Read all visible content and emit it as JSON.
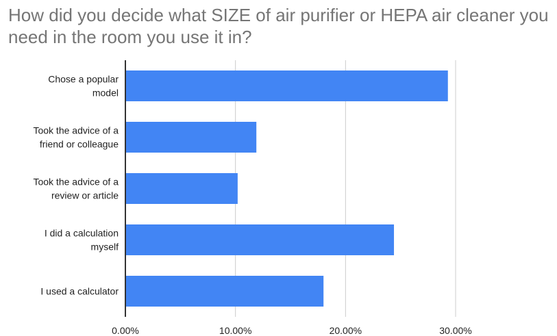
{
  "chart_data": {
    "type": "bar",
    "orientation": "horizontal",
    "title": "How did you decide what SIZE of air purifier or HEPA air cleaner you need in the room you use it in?",
    "categories": [
      [
        "Chose a popular",
        "model"
      ],
      [
        "Took the advice of a",
        "friend or colleague"
      ],
      [
        "Took the advice of a",
        "review or article"
      ],
      [
        "I did a calculation",
        "myself"
      ],
      [
        "I used a calculator"
      ]
    ],
    "values": [
      0.293,
      0.119,
      0.102,
      0.244,
      0.18
    ],
    "xlim": [
      0,
      0.3
    ],
    "x_ticks": [
      0,
      0.1,
      0.2,
      0.3
    ],
    "x_tick_labels": [
      "0.00%",
      "10.00%",
      "20.00%",
      "30.00%"
    ],
    "grid": true,
    "bar_color": "#4285f4",
    "grid_color": "#cccccc",
    "axis_color": "#333333"
  }
}
